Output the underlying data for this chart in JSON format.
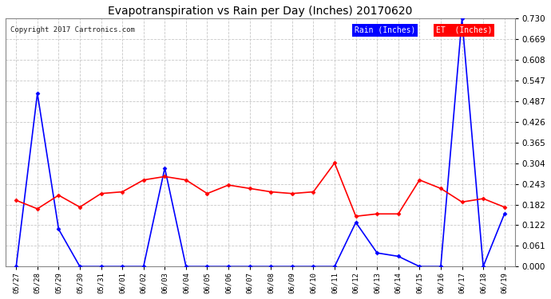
{
  "title": "Evapotranspiration vs Rain per Day (Inches) 20170620",
  "copyright": "Copyright 2017 Cartronics.com",
  "x_labels": [
    "05/27",
    "05/28",
    "05/29",
    "05/30",
    "05/31",
    "06/01",
    "06/02",
    "06/03",
    "06/04",
    "06/05",
    "06/06",
    "06/07",
    "06/08",
    "06/09",
    "06/10",
    "06/11",
    "06/12",
    "06/13",
    "06/14",
    "06/15",
    "06/16",
    "06/17",
    "06/18",
    "06/19"
  ],
  "rain_inches": [
    0.0,
    0.51,
    0.11,
    0.0,
    0.0,
    0.0,
    0.0,
    0.29,
    0.0,
    0.0,
    0.0,
    0.0,
    0.0,
    0.0,
    0.0,
    0.0,
    0.13,
    0.04,
    0.03,
    0.0,
    0.0,
    0.73,
    0.0,
    0.155
  ],
  "et_inches": [
    0.195,
    0.17,
    0.21,
    0.175,
    0.215,
    0.22,
    0.255,
    0.265,
    0.255,
    0.215,
    0.24,
    0.23,
    0.22,
    0.215,
    0.22,
    0.305,
    0.148,
    0.155,
    0.155,
    0.255,
    0.23,
    0.19,
    0.2,
    0.175
  ],
  "rain_color": "#0000ff",
  "et_color": "#ff0000",
  "background_color": "#ffffff",
  "grid_color": "#c8c8c8",
  "ylim": [
    0.0,
    0.73
  ],
  "yticks": [
    0.0,
    0.061,
    0.122,
    0.182,
    0.243,
    0.304,
    0.365,
    0.426,
    0.487,
    0.547,
    0.608,
    0.669,
    0.73
  ],
  "legend_rain_bg": "#0000ff",
  "legend_et_bg": "#ff0000",
  "legend_rain_text": "Rain (Inches)",
  "legend_et_text": "ET  (Inches)",
  "figwidth": 6.9,
  "figheight": 3.75,
  "dpi": 100
}
